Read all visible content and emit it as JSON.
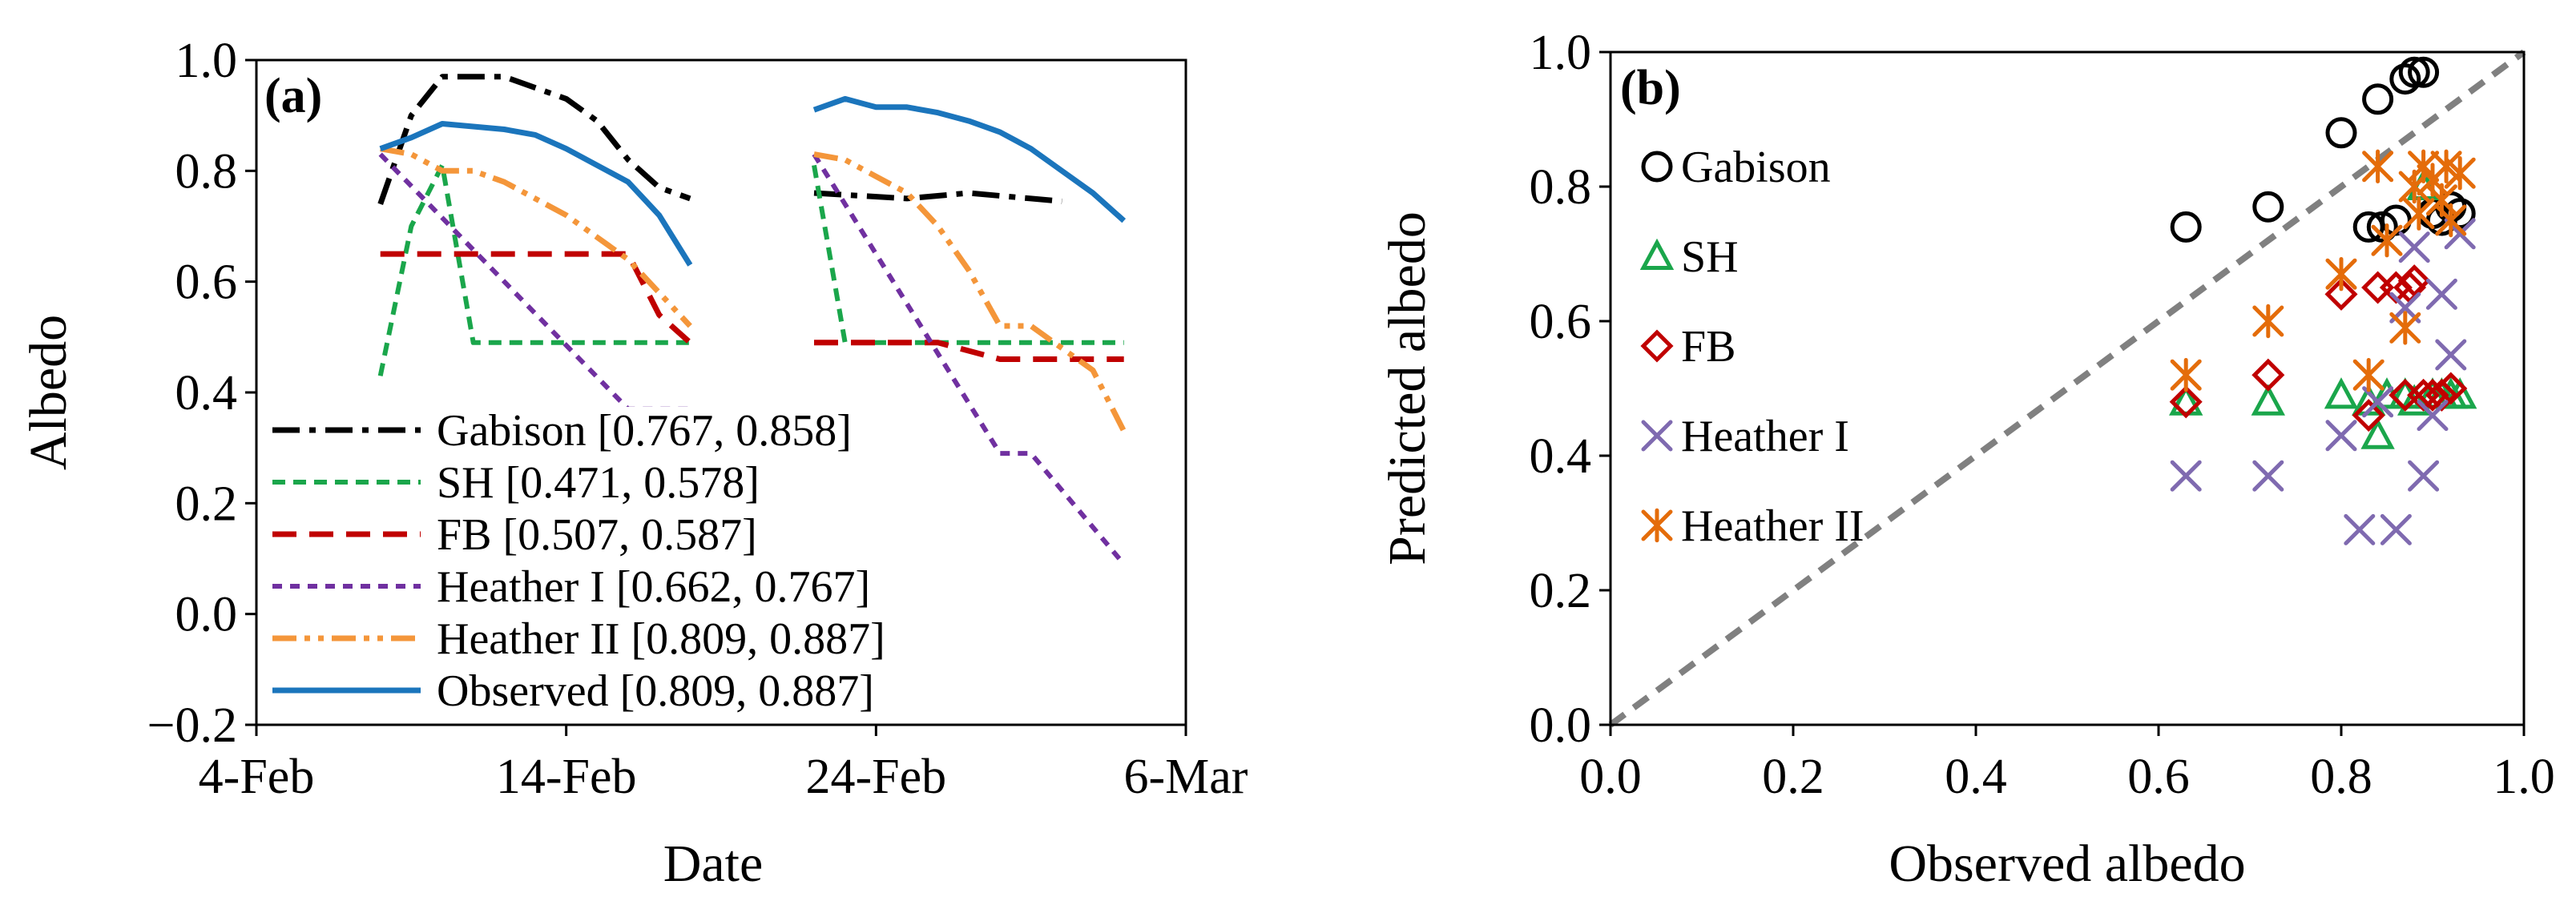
{
  "chart_data": [
    {
      "panel_label": "(a)",
      "type": "line",
      "xlabel": "Date",
      "ylabel": "Albedo",
      "xaxis": {
        "min": "2021-02-04",
        "max": "2021-03-06",
        "ticks": [
          "2021-02-04",
          "2021-02-14",
          "2021-02-24",
          "2021-03-06"
        ],
        "tick_labels": [
          "4-Feb",
          "14-Feb",
          "24-Feb",
          "6-Mar"
        ]
      },
      "ylim": [
        -0.2,
        1.0
      ],
      "yticks": [
        -0.2,
        0.0,
        0.2,
        0.4,
        0.6,
        0.8,
        1.0
      ],
      "ytick_labels": [
        "−0.2",
        "0.0",
        "0.2",
        "0.4",
        "0.6",
        "0.8",
        "1.0"
      ],
      "grid": false,
      "legend_position": "bottom-left",
      "series": [
        {
          "name": "Gabison [0.767, 0.858]",
          "color": "#000000",
          "style": "dashdot",
          "segments": [
            [
              [
                "2021-02-08",
                0.74
              ],
              [
                "2021-02-09",
                0.9
              ],
              [
                "2021-02-10",
                0.97
              ],
              [
                "2021-02-11",
                0.97
              ],
              [
                "2021-02-12",
                0.97
              ],
              [
                "2021-02-13",
                0.95
              ],
              [
                "2021-02-14",
                0.93
              ],
              [
                "2021-02-15",
                0.89
              ],
              [
                "2021-02-16",
                0.82
              ],
              [
                "2021-02-17",
                0.77
              ],
              [
                "2021-02-18",
                0.75
              ]
            ],
            [
              [
                "2021-02-22",
                0.76
              ],
              [
                "2021-02-25",
                0.75
              ],
              [
                "2021-02-27",
                0.76
              ],
              [
                "2021-02-28",
                0.755
              ],
              [
                "2021-03-01",
                0.75
              ],
              [
                "2021-03-02",
                0.745
              ]
            ]
          ]
        },
        {
          "name": "SH [0.471, 0.578]",
          "color": "#1aa64b",
          "style": "dash",
          "segments": [
            [
              [
                "2021-02-08",
                0.43
              ],
              [
                "2021-02-09",
                0.7
              ],
              [
                "2021-02-10",
                0.81
              ],
              [
                "2021-02-11",
                0.49
              ],
              [
                "2021-02-18",
                0.49
              ]
            ],
            [
              [
                "2021-02-22",
                0.81
              ],
              [
                "2021-02-23",
                0.49
              ],
              [
                "2021-03-04",
                0.49
              ]
            ]
          ]
        },
        {
          "name": "FB [0.507, 0.587]",
          "color": "#c00000",
          "style": "longdash",
          "segments": [
            [
              [
                "2021-02-08",
                0.65
              ],
              [
                "2021-02-16",
                0.65
              ],
              [
                "2021-02-17",
                0.54
              ],
              [
                "2021-02-18",
                0.49
              ]
            ],
            [
              [
                "2021-02-22",
                0.49
              ],
              [
                "2021-02-26",
                0.49
              ],
              [
                "2021-02-28",
                0.46
              ],
              [
                "2021-03-04",
                0.46
              ]
            ]
          ]
        },
        {
          "name": "Heather I [0.662, 0.767]",
          "color": "#7030a0",
          "style": "shortdash",
          "segments": [
            [
              [
                "2021-02-08",
                0.83
              ],
              [
                "2021-02-16",
                0.37
              ],
              [
                "2021-02-18",
                0.37
              ]
            ],
            [
              [
                "2021-02-22",
                0.83
              ],
              [
                "2021-02-28",
                0.29
              ],
              [
                "2021-03-01",
                0.29
              ],
              [
                "2021-03-04",
                0.09
              ]
            ]
          ]
        },
        {
          "name": "Heather II [0.809, 0.887]",
          "color": "#f4963a",
          "style": "dashdotdot",
          "segments": [
            [
              [
                "2021-02-08",
                0.84
              ],
              [
                "2021-02-09",
                0.83
              ],
              [
                "2021-02-10",
                0.8
              ],
              [
                "2021-02-11",
                0.8
              ],
              [
                "2021-02-12",
                0.78
              ],
              [
                "2021-02-13",
                0.75
              ],
              [
                "2021-02-14",
                0.72
              ],
              [
                "2021-02-15",
                0.68
              ],
              [
                "2021-02-16",
                0.64
              ],
              [
                "2021-02-17",
                0.58
              ],
              [
                "2021-02-18",
                0.52
              ]
            ],
            [
              [
                "2021-02-22",
                0.83
              ],
              [
                "2021-02-23",
                0.82
              ],
              [
                "2021-02-24",
                0.79
              ],
              [
                "2021-02-25",
                0.76
              ],
              [
                "2021-02-26",
                0.7
              ],
              [
                "2021-02-27",
                0.62
              ],
              [
                "2021-02-28",
                0.52
              ],
              [
                "2021-03-01",
                0.52
              ],
              [
                "2021-03-02",
                0.48
              ],
              [
                "2021-03-03",
                0.44
              ],
              [
                "2021-03-04",
                0.33
              ]
            ]
          ]
        },
        {
          "name": "Observed [0.809, 0.887]",
          "color": "#1b75bc",
          "style": "solid",
          "segments": [
            [
              [
                "2021-02-08",
                0.84
              ],
              [
                "2021-02-09",
                0.86
              ],
              [
                "2021-02-10",
                0.885
              ],
              [
                "2021-02-12",
                0.875
              ],
              [
                "2021-02-13",
                0.865
              ],
              [
                "2021-02-14",
                0.84
              ],
              [
                "2021-02-15",
                0.81
              ],
              [
                "2021-02-16",
                0.78
              ],
              [
                "2021-02-17",
                0.72
              ],
              [
                "2021-02-18",
                0.63
              ]
            ],
            [
              [
                "2021-02-22",
                0.91
              ],
              [
                "2021-02-23",
                0.93
              ],
              [
                "2021-02-24",
                0.915
              ],
              [
                "2021-02-25",
                0.915
              ],
              [
                "2021-02-26",
                0.905
              ],
              [
                "2021-02-27",
                0.89
              ],
              [
                "2021-02-28",
                0.87
              ],
              [
                "2021-03-01",
                0.84
              ],
              [
                "2021-03-02",
                0.8
              ],
              [
                "2021-03-03",
                0.76
              ],
              [
                "2021-03-04",
                0.71
              ]
            ]
          ]
        }
      ]
    },
    {
      "panel_label": "(b)",
      "type": "scatter",
      "xlabel": "Observed albedo",
      "ylabel": "Predicted albedo",
      "xlim": [
        0.0,
        1.0
      ],
      "ylim": [
        0.0,
        1.0
      ],
      "xticks": [
        0.0,
        0.2,
        0.4,
        0.6,
        0.8,
        1.0
      ],
      "yticks": [
        0.0,
        0.2,
        0.4,
        0.6,
        0.8,
        1.0
      ],
      "xtick_labels": [
        "0.0",
        "0.2",
        "0.4",
        "0.6",
        "0.8",
        "1.0"
      ],
      "ytick_labels": [
        "0.0",
        "0.2",
        "0.4",
        "0.6",
        "0.8",
        "1.0"
      ],
      "one_to_one_line": {
        "color": "#808080",
        "style": "dash"
      },
      "grid": false,
      "legend_position": "top-left",
      "series": [
        {
          "name": "Gabison",
          "color": "#000000",
          "marker": "circle",
          "points": [
            [
              0.63,
              0.74
            ],
            [
              0.72,
              0.77
            ],
            [
              0.8,
              0.88
            ],
            [
              0.83,
              0.74
            ],
            [
              0.84,
              0.93
            ],
            [
              0.845,
              0.74
            ],
            [
              0.86,
              0.75
            ],
            [
              0.87,
              0.96
            ],
            [
              0.88,
              0.97
            ],
            [
              0.89,
              0.97
            ],
            [
              0.9,
              0.76
            ],
            [
              0.91,
              0.75
            ],
            [
              0.92,
              0.77
            ],
            [
              0.93,
              0.76
            ]
          ]
        },
        {
          "name": "SH",
          "color": "#1aa64b",
          "marker": "triangle",
          "points": [
            [
              0.63,
              0.48
            ],
            [
              0.72,
              0.48
            ],
            [
              0.8,
              0.49
            ],
            [
              0.83,
              0.48
            ],
            [
              0.84,
              0.43
            ],
            [
              0.85,
              0.49
            ],
            [
              0.87,
              0.49
            ],
            [
              0.88,
              0.48
            ],
            [
              0.89,
              0.8
            ],
            [
              0.9,
              0.49
            ],
            [
              0.91,
              0.49
            ],
            [
              0.92,
              0.49
            ],
            [
              0.93,
              0.49
            ]
          ]
        },
        {
          "name": "FB",
          "color": "#c00000",
          "marker": "diamond",
          "points": [
            [
              0.63,
              0.48
            ],
            [
              0.72,
              0.52
            ],
            [
              0.8,
              0.64
            ],
            [
              0.83,
              0.46
            ],
            [
              0.84,
              0.65
            ],
            [
              0.86,
              0.65
            ],
            [
              0.87,
              0.49
            ],
            [
              0.875,
              0.65
            ],
            [
              0.88,
              0.66
            ],
            [
              0.89,
              0.49
            ],
            [
              0.9,
              0.49
            ],
            [
              0.91,
              0.49
            ],
            [
              0.92,
              0.5
            ]
          ]
        },
        {
          "name": "Heather I",
          "color": "#7f6ab0",
          "marker": "x",
          "points": [
            [
              0.63,
              0.37
            ],
            [
              0.72,
              0.37
            ],
            [
              0.8,
              0.43
            ],
            [
              0.82,
              0.29
            ],
            [
              0.84,
              0.48
            ],
            [
              0.86,
              0.29
            ],
            [
              0.87,
              0.62
            ],
            [
              0.88,
              0.71
            ],
            [
              0.89,
              0.37
            ],
            [
              0.9,
              0.46
            ],
            [
              0.91,
              0.64
            ],
            [
              0.92,
              0.55
            ],
            [
              0.93,
              0.73
            ]
          ]
        },
        {
          "name": "Heather II",
          "color": "#e46c0a",
          "marker": "asterisk",
          "points": [
            [
              0.63,
              0.52
            ],
            [
              0.72,
              0.6
            ],
            [
              0.8,
              0.67
            ],
            [
              0.83,
              0.52
            ],
            [
              0.84,
              0.83
            ],
            [
              0.85,
              0.72
            ],
            [
              0.87,
              0.59
            ],
            [
              0.88,
              0.8
            ],
            [
              0.885,
              0.76
            ],
            [
              0.89,
              0.83
            ],
            [
              0.9,
              0.81
            ],
            [
              0.91,
              0.78
            ],
            [
              0.915,
              0.83
            ],
            [
              0.92,
              0.75
            ],
            [
              0.93,
              0.82
            ]
          ]
        }
      ]
    }
  ]
}
